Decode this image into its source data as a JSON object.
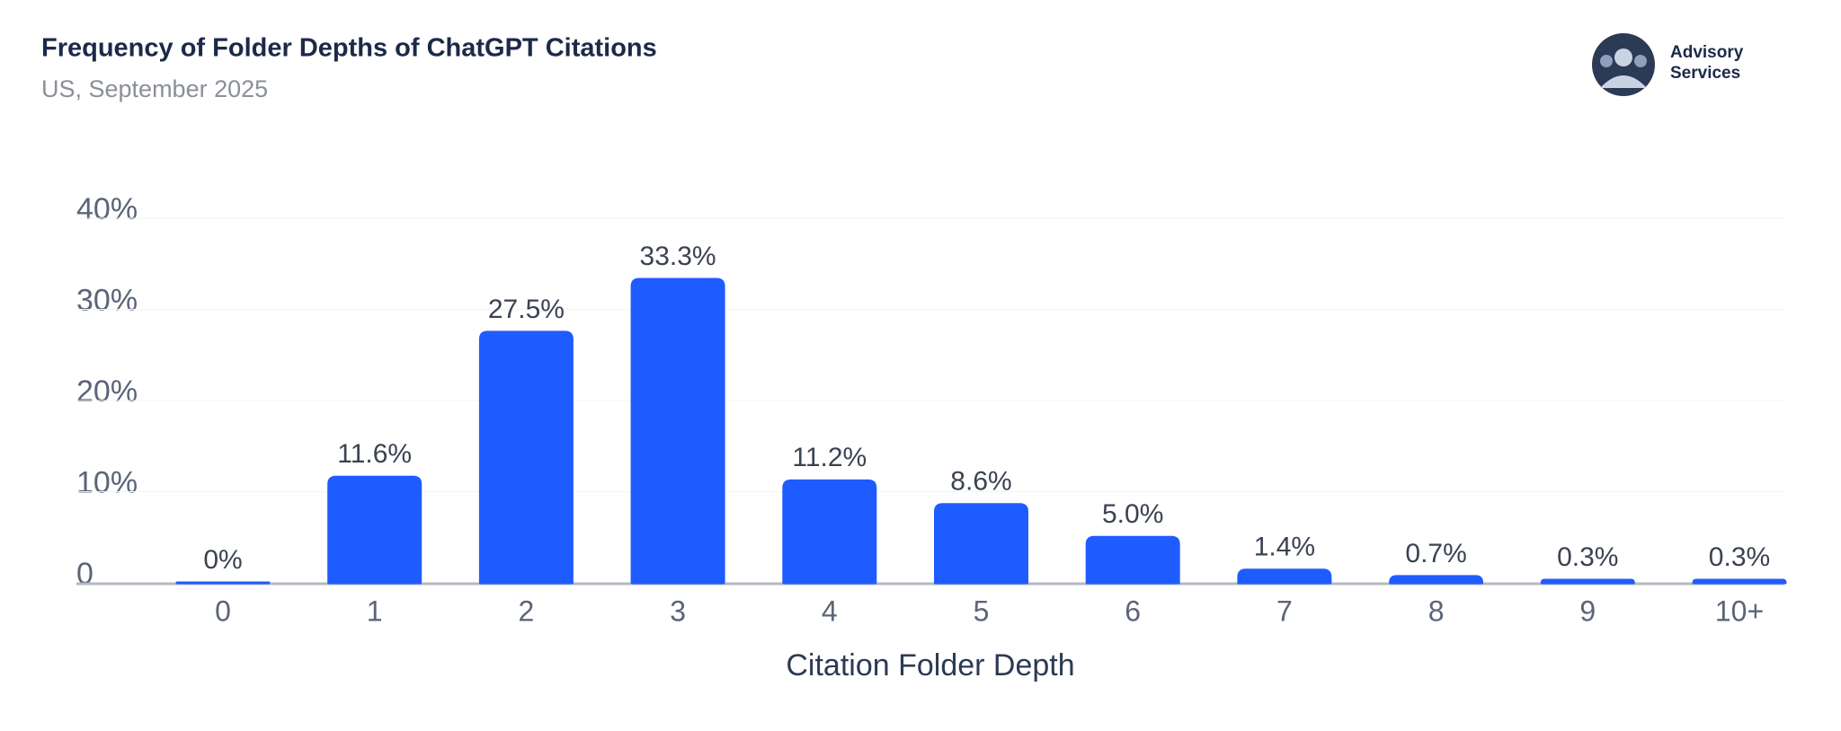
{
  "chart_data": {
    "type": "bar",
    "title": "Frequency of Folder Depths of ChatGPT Citations",
    "subtitle": "US, September 2025",
    "logo_text": [
      "Advisory",
      "Services"
    ],
    "x_label": "Citation Folder Depth",
    "categories": [
      "0",
      "1",
      "2",
      "3",
      "4",
      "5",
      "6",
      "7",
      "8",
      "9",
      "10+"
    ],
    "values": [
      0,
      11.6,
      27.5,
      33.3,
      11.2,
      8.6,
      5.0,
      1.4,
      0.7,
      0.3,
      0.3
    ],
    "value_labels": [
      "0%",
      "11.6%",
      "27.5%",
      "33.3%",
      "11.2%",
      "8.6%",
      "5.0%",
      "1.4%",
      "0.7%",
      "0.3%",
      "0.3%"
    ],
    "color": "#1f5cff",
    "ylim": [
      0,
      40
    ],
    "yticks": [
      0,
      {
        "value": 10,
        "label": "10%"
      },
      {
        "value": 20,
        "label": "20%"
      },
      {
        "value": 30,
        "label": "30%"
      },
      {
        "value": 40,
        "label": "40%"
      }
    ],
    "grid": true
  }
}
